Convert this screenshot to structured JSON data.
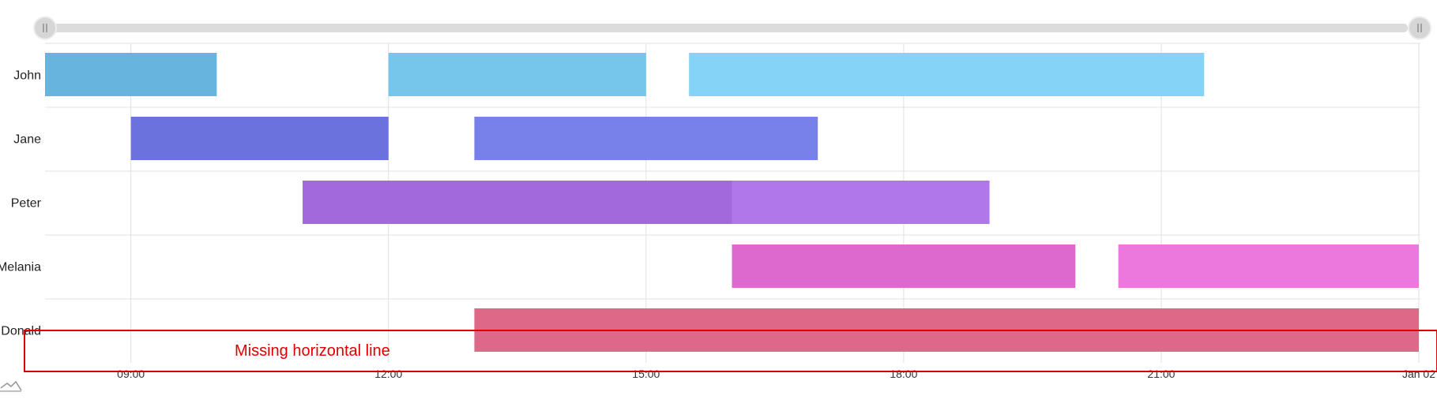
{
  "chart_data": {
    "type": "gantt",
    "title": "",
    "xlabel": "",
    "ylabel": "",
    "x_start": "08:00",
    "x_end": "24:00",
    "x_ticks": [
      {
        "value": 9,
        "label": "09:00"
      },
      {
        "value": 12,
        "label": "12:00"
      },
      {
        "value": 15,
        "label": "15:00"
      },
      {
        "value": 18,
        "label": "18:00"
      },
      {
        "value": 21,
        "label": "21:00"
      },
      {
        "value": 24,
        "label": "Jan 02"
      }
    ],
    "categories": [
      "John",
      "Jane",
      "Peter",
      "Melania",
      "Donald"
    ],
    "grid": true,
    "series": [
      {
        "category": "John",
        "start": 8,
        "end": 10,
        "color": "#67b5de"
      },
      {
        "category": "John",
        "start": 12,
        "end": 15,
        "color": "#76c6eb"
      },
      {
        "category": "John",
        "start": 15.5,
        "end": 21.5,
        "color": "#85d4f7"
      },
      {
        "category": "Jane",
        "start": 9,
        "end": 12,
        "color": "#6b72de"
      },
      {
        "category": "Jane",
        "start": 13,
        "end": 17,
        "color": "#7880ea"
      },
      {
        "category": "Peter",
        "start": 11,
        "end": 16,
        "color": "#a169db"
      },
      {
        "category": "Peter",
        "start": 16,
        "end": 19,
        "color": "#b077ea"
      },
      {
        "category": "Melania",
        "start": 16,
        "end": 20,
        "color": "#de69ce"
      },
      {
        "category": "Melania",
        "start": 20.5,
        "end": 24,
        "color": "#ec78de"
      },
      {
        "category": "Donald",
        "start": 13,
        "end": 24,
        "color": "#de6887"
      }
    ]
  },
  "scrollbar": {
    "left_handle_icon": "grip-icon",
    "right_handle_icon": "grip-icon"
  },
  "annotation": {
    "text": "Missing horizontal line",
    "color": "#dd0000"
  }
}
